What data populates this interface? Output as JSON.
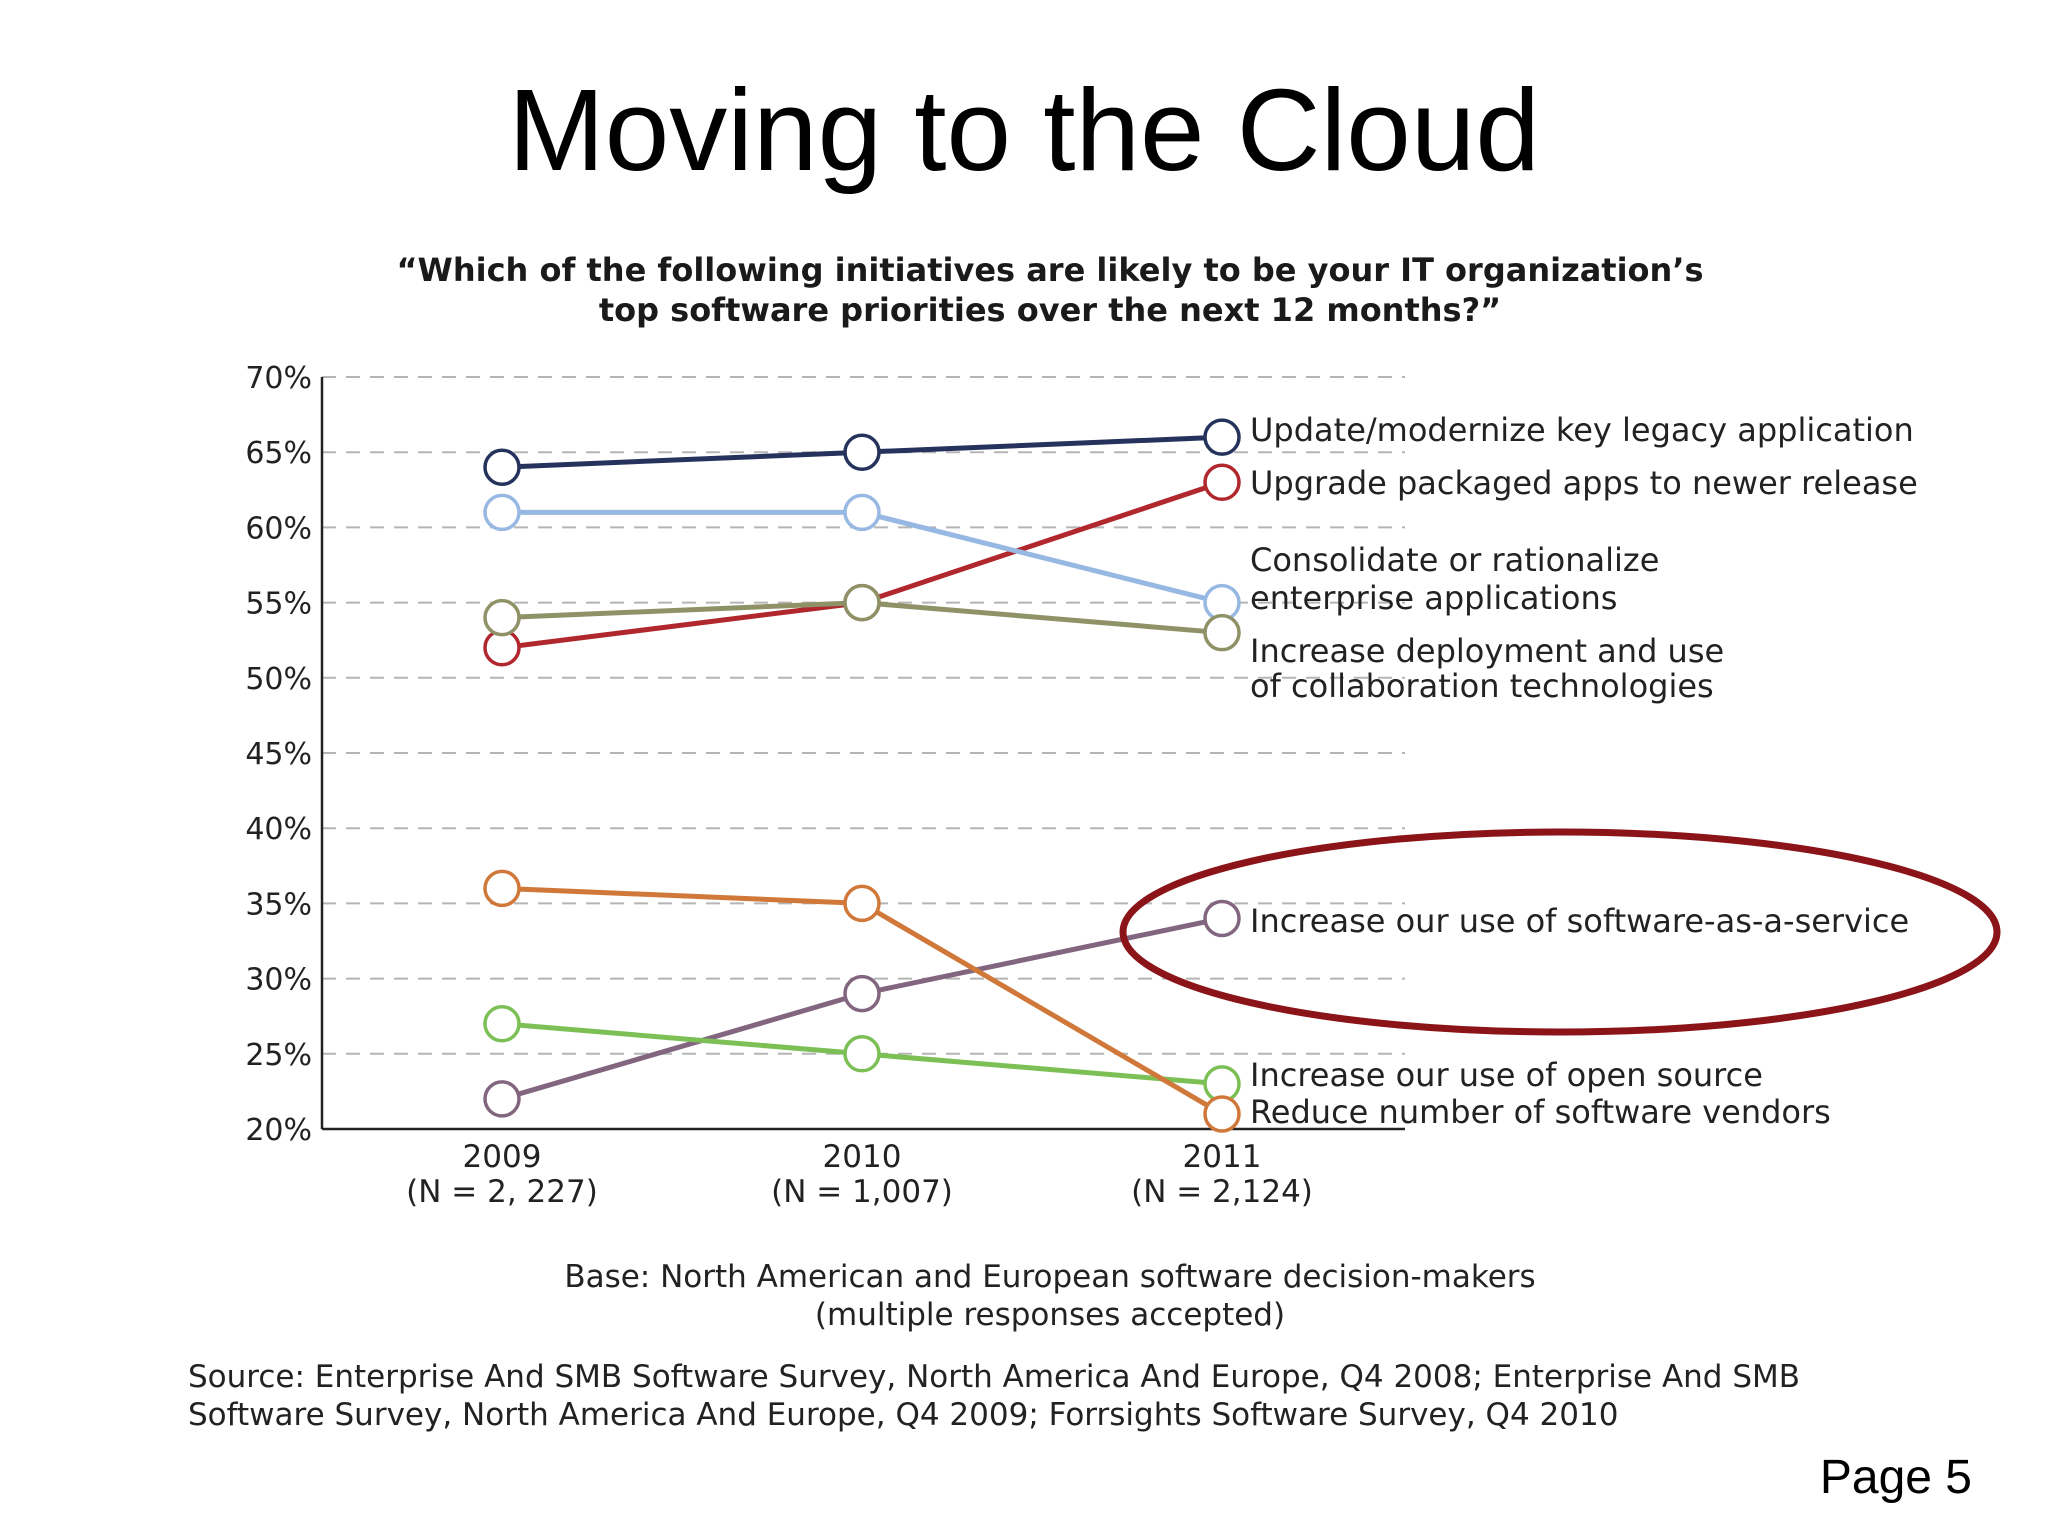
{
  "slide": {
    "title": "Moving to the Cloud",
    "page_label": "Page 5"
  },
  "question": {
    "line1": "“Which of the following initiatives are likely to be your IT organization’s",
    "line2": "top software priorities over the next 12 months?”"
  },
  "notes": {
    "base_line1": "Base: North American and European software decision-makers",
    "base_line2": "(multiple responses accepted)",
    "source_line1": "Source: Enterprise And SMB Software Survey, North America And Europe, Q4 2008; Enterprise And SMB",
    "source_line2": "Software Survey, North America And Europe, Q4 2009; Forrsights Software Survey, Q4 2010"
  },
  "chart_data": {
    "type": "line",
    "title": "",
    "xlabel": "",
    "ylabel": "",
    "x": [
      "2009",
      "2010",
      "2011"
    ],
    "x_sublabels": [
      "(N = 2, 227)",
      "(N = 1,007)",
      "(N = 2,124)"
    ],
    "ylim": [
      20,
      70
    ],
    "ytick_step": 5,
    "ytick_suffix": "%",
    "grid": "horizontal dashed",
    "series": [
      {
        "name": "Update/modernize key legacy application",
        "values": [
          64,
          65,
          66
        ],
        "color": "#25325c"
      },
      {
        "name": "Upgrade packaged apps to newer release",
        "values": [
          52,
          55,
          63
        ],
        "color": "#b0282e"
      },
      {
        "name": "Consolidate or rationalize enterprise applications",
        "values": [
          61,
          61,
          55
        ],
        "color": "#97b8e2"
      },
      {
        "name": "Increase deployment and use of collaboration technologies",
        "values": [
          54,
          55,
          53
        ],
        "color": "#8f9167"
      },
      {
        "name": "Increase our use of software-as-a-service",
        "values": [
          22,
          29,
          34
        ],
        "color": "#82657e"
      },
      {
        "name": "Increase our use of open source",
        "values": [
          27,
          25,
          23
        ],
        "color": "#7bbf55"
      },
      {
        "name": "Reduce number of software vendors",
        "values": [
          36,
          35,
          21
        ],
        "color": "#d0783a"
      }
    ],
    "labels": [
      {
        "lines": [
          "Update/modernize key legacy application"
        ],
        "series": 0
      },
      {
        "lines": [
          "Upgrade packaged apps to newer release"
        ],
        "series": 1
      },
      {
        "lines": [
          "Consolidate or rationalize",
          "enterprise applications"
        ],
        "series": 2
      },
      {
        "lines": [
          "Increase deployment and use",
          "of collaboration technologies"
        ],
        "series": 3
      },
      {
        "lines": [
          "Increase our use of software-as-a-service"
        ],
        "series": 4
      },
      {
        "lines": [
          "Increase our use of open source"
        ],
        "series": 5
      },
      {
        "lines": [
          "Reduce number of software vendors"
        ],
        "series": 6
      }
    ],
    "highlight": {
      "series": 4,
      "color": "#8b1418"
    }
  }
}
